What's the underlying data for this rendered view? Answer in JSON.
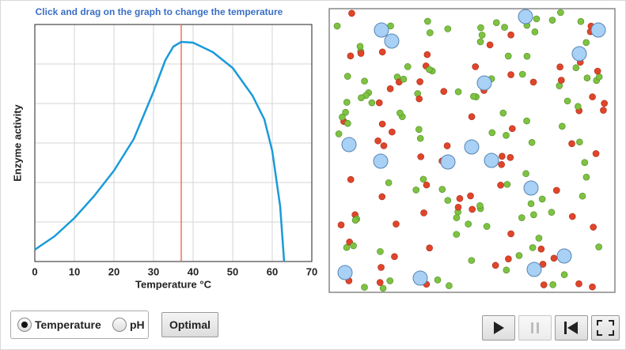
{
  "instruction": "Click and drag on the graph to change the temperature",
  "chart_data": {
    "type": "line",
    "x_label": "Temperature °C",
    "y_label": "Enzyme activity",
    "x": [
      0,
      5,
      10,
      15,
      20,
      25,
      30,
      33,
      35,
      37,
      40,
      45,
      50,
      55,
      58,
      60,
      62,
      63
    ],
    "values": [
      0.3,
      0.64,
      1.1,
      1.66,
      2.3,
      3.1,
      4.3,
      5.1,
      5.44,
      5.56,
      5.54,
      5.3,
      4.9,
      4.2,
      3.6,
      2.8,
      1.4,
      0
    ],
    "color": "#1a9ad9",
    "xlim": [
      0,
      70
    ],
    "xticks": [
      0,
      10,
      20,
      30,
      40,
      50,
      60,
      70
    ],
    "ylim": [
      0,
      6
    ],
    "yticks": [
      0,
      1,
      2,
      3,
      4,
      5,
      6
    ],
    "ytick_labels": false,
    "grid": true,
    "marker_x": 37,
    "marker_color": "#f07060"
  },
  "controls": {
    "radio_options": [
      "Temperature",
      "pH"
    ],
    "selected": 0,
    "button": "Optimal"
  }
}
